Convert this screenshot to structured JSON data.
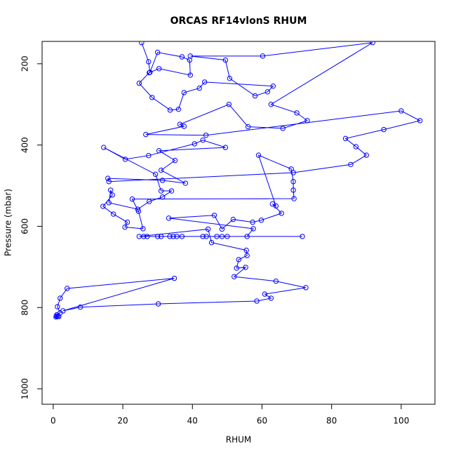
{
  "chart_data": {
    "type": "line",
    "title": "ORCAS RF14vlonS RHUM",
    "x_label": "RHUM",
    "y_label": "Pressure (mbar)",
    "x": [
      25.4,
      27.4,
      27.8,
      30,
      37,
      39.2,
      39.4,
      30.4,
      27.6,
      24.7,
      28.4,
      33.6,
      36,
      37.6,
      42,
      43.5,
      63.2,
      61.6,
      58,
      50.7,
      49.5,
      39.4,
      60.2,
      91.8,
      62.6,
      70,
      73,
      66,
      56,
      50.5,
      36.4,
      37.6,
      26.6,
      43.9,
      100,
      105.4,
      95,
      84,
      87,
      90,
      85.5,
      69,
      16,
      15.7,
      31.4,
      38,
      31,
      35,
      30.4,
      49.5,
      43,
      40.6,
      27.4,
      20.7,
      14.5,
      29.4,
      31,
      34,
      31.4,
      27.6,
      24.3,
      16,
      16.5,
      17,
      14.3,
      17.3,
      21.3,
      20.6,
      25.8,
      24.5,
      22.7,
      69.2,
      69,
      69,
      68.4,
      59,
      64,
      63,
      65.6,
      59.8,
      57.3,
      51.7,
      48.5,
      46.3,
      33.2,
      57.5,
      55.7,
      71.6,
      50,
      48.5,
      47,
      44,
      43,
      37,
      35.5,
      34.5,
      33.5,
      31,
      30,
      27,
      26,
      24.7,
      44.5,
      45.5,
      55.5,
      55.7,
      53.3,
      52.7,
      55.3,
      52,
      64,
      72.6,
      60.8,
      62.6,
      58.5,
      30.2,
      7.8,
      2.8,
      34.8,
      4,
      2,
      1.2,
      2,
      1,
      0.8,
      1.3,
      1,
      1.6
    ],
    "series": [
      {
        "color": "#0000ff",
        "values": [
          148,
          195,
          221,
          172,
          183,
          191,
          228,
          212,
          222,
          248,
          283,
          314,
          312,
          271,
          260,
          245,
          255,
          269,
          279,
          236,
          191,
          181,
          181,
          148,
          300,
          321,
          340,
          359,
          355,
          300,
          349,
          354,
          374,
          376,
          316,
          340,
          362,
          384,
          404,
          425,
          448,
          468,
          490,
          482,
          487,
          494,
          462,
          438,
          414,
          406,
          388,
          397,
          426,
          435,
          406,
          472,
          513,
          513,
          528,
          539,
          558,
          542,
          511,
          523,
          551,
          570,
          590,
          602,
          606,
          563,
          533,
          532,
          511,
          490,
          459,
          425,
          550,
          545,
          568,
          585,
          590,
          583,
          607,
          573,
          580,
          606,
          625,
          625,
          625,
          625,
          625,
          625,
          625,
          625,
          625,
          625,
          625,
          625,
          625,
          625,
          625,
          625,
          607,
          640,
          659,
          672,
          682,
          703,
          701,
          724,
          735,
          751,
          767,
          777,
          784,
          791,
          799,
          808,
          728,
          753,
          777,
          798,
          813,
          818,
          823,
          822,
          821,
          822
        ]
      }
    ],
    "xlim": [
      -3.2,
      109.7
    ],
    "ylim": [
      1038,
      145
    ],
    "xticks": [
      0,
      20,
      40,
      60,
      80,
      100
    ],
    "yticks": [
      200,
      400,
      600,
      800,
      1000
    ]
  }
}
